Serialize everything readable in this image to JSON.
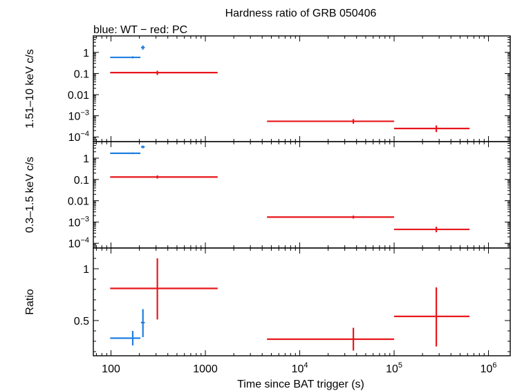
{
  "chart_data": {
    "type": "scatter",
    "title": "Hardness ratio of GRB 050406",
    "subtitle": "blue: WT − red: PC",
    "xlabel": "Time since BAT trigger (s)",
    "xscale": "log",
    "xlim": [
      65,
      1700000
    ],
    "x_ticks": [
      {
        "value": 100,
        "label": "100"
      },
      {
        "value": 1000,
        "label": "1000"
      },
      {
        "value": 10000,
        "base": "10",
        "exp": "4"
      },
      {
        "value": 100000,
        "base": "10",
        "exp": "5"
      },
      {
        "value": 1000000,
        "base": "10",
        "exp": "6"
      }
    ],
    "series_colors": {
      "WT": "#1f7fe0",
      "PC": "#e8161b"
    },
    "panels": [
      {
        "id": "hard",
        "ylabel": "1.51–10 keV c/s",
        "yscale": "log",
        "ylim": [
          6e-05,
          6
        ],
        "y_ticks": [
          {
            "value": 1,
            "label": "1"
          },
          {
            "value": 0.1,
            "label": "0.1"
          },
          {
            "value": 0.01,
            "label": "0.01"
          },
          {
            "value": 0.001,
            "base": "10",
            "exp": "−3"
          },
          {
            "value": 0.0001,
            "base": "10",
            "exp": "−4"
          }
        ],
        "points": [
          {
            "series": "WT",
            "x": 170,
            "xlo": 98,
            "xhi": 205,
            "y": 0.58,
            "ylo": 0.52,
            "yhi": 0.65
          },
          {
            "series": "WT",
            "x": 218,
            "xlo": 208,
            "xhi": 228,
            "y": 1.7,
            "ylo": 1.35,
            "yhi": 2.1
          },
          {
            "series": "PC",
            "x": 310,
            "xlo": 98,
            "xhi": 1350,
            "y": 0.11,
            "ylo": 0.085,
            "yhi": 0.135
          },
          {
            "series": "PC",
            "x": 37000,
            "xlo": 4500,
            "xhi": 100000,
            "y": 0.00055,
            "ylo": 0.00042,
            "yhi": 0.0007
          },
          {
            "series": "PC",
            "x": 280000,
            "xlo": 100000,
            "xhi": 630000,
            "y": 0.00025,
            "ylo": 0.00017,
            "yhi": 0.00035
          }
        ]
      },
      {
        "id": "soft",
        "ylabel": "0.3–1.5 keV c/s",
        "yscale": "log",
        "ylim": [
          6e-05,
          6
        ],
        "y_ticks": [
          {
            "value": 1,
            "label": "1"
          },
          {
            "value": 0.1,
            "label": "0.1"
          },
          {
            "value": 0.01,
            "label": "0.01"
          },
          {
            "value": 0.001,
            "base": "10",
            "exp": "−3"
          },
          {
            "value": 0.0001,
            "base": "10",
            "exp": "−4"
          }
        ],
        "points": [
          {
            "series": "WT",
            "x": 170,
            "xlo": 98,
            "xhi": 205,
            "y": 1.7,
            "ylo": 1.55,
            "yhi": 1.85
          },
          {
            "series": "WT",
            "x": 218,
            "xlo": 208,
            "xhi": 228,
            "y": 3.4,
            "ylo": 2.9,
            "yhi": 3.9
          },
          {
            "series": "PC",
            "x": 310,
            "xlo": 98,
            "xhi": 1350,
            "y": 0.13,
            "ylo": 0.11,
            "yhi": 0.155
          },
          {
            "series": "PC",
            "x": 37000,
            "xlo": 4500,
            "xhi": 100000,
            "y": 0.0017,
            "ylo": 0.00145,
            "yhi": 0.002
          },
          {
            "series": "PC",
            "x": 280000,
            "xlo": 100000,
            "xhi": 630000,
            "y": 0.00045,
            "ylo": 0.00033,
            "yhi": 0.0006
          }
        ]
      },
      {
        "id": "ratio",
        "ylabel": "Ratio",
        "yscale": "linear",
        "ylim": [
          0.16,
          1.2
        ],
        "y_ticks": [
          {
            "value": 1,
            "label": "1"
          },
          {
            "value": 0.5,
            "label": "0.5"
          }
        ],
        "y_minor_step": 0.1,
        "points": [
          {
            "series": "WT",
            "x": 170,
            "xlo": 98,
            "xhi": 205,
            "y": 0.33,
            "ylo": 0.26,
            "yhi": 0.4
          },
          {
            "series": "WT",
            "x": 218,
            "xlo": 208,
            "xhi": 228,
            "y": 0.48,
            "ylo": 0.34,
            "yhi": 0.61
          },
          {
            "series": "PC",
            "x": 310,
            "xlo": 98,
            "xhi": 1350,
            "y": 0.81,
            "ylo": 0.51,
            "yhi": 1.1
          },
          {
            "series": "PC",
            "x": 37000,
            "xlo": 4500,
            "xhi": 100000,
            "y": 0.32,
            "ylo": 0.21,
            "yhi": 0.43
          },
          {
            "series": "PC",
            "x": 280000,
            "xlo": 100000,
            "xhi": 630000,
            "y": 0.54,
            "ylo": 0.25,
            "yhi": 0.82
          }
        ]
      }
    ]
  }
}
